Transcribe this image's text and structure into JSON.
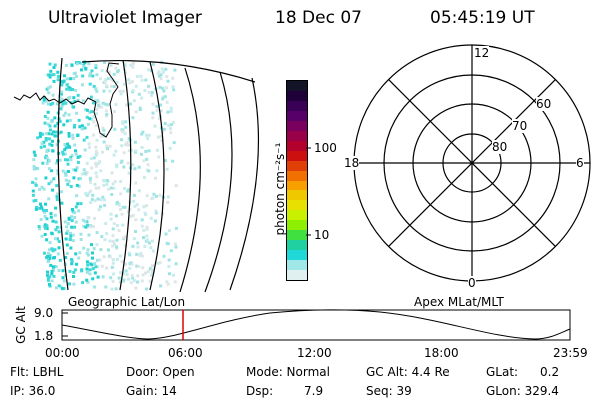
{
  "header": {
    "title": "Ultraviolet Imager",
    "date": "18 Dec 07",
    "time": "05:45:19 UT"
  },
  "colorbar": {
    "label": "photon cm⁻²s⁻¹",
    "ticks": [
      "100",
      "10"
    ],
    "colors": [
      "#141428",
      "#200038",
      "#3a0058",
      "#58006a",
      "#7a0060",
      "#98004a",
      "#b4002c",
      "#cc1010",
      "#e04008",
      "#f07000",
      "#f8a000",
      "#f0c800",
      "#e8e000",
      "#c8f000",
      "#8ef000",
      "#40e040",
      "#20d0a0",
      "#20d8d8",
      "#a0e8e8",
      "#e0f0f0"
    ]
  },
  "geo_panel": {
    "caption": "Geographic Lat/Lon"
  },
  "polar_plot": {
    "caption": "Apex MLat/MLT",
    "mlt_labels": {
      "top": "12",
      "left": "18",
      "right": "6",
      "bottom": "0"
    },
    "lat_labels": [
      "60",
      "70",
      "80"
    ]
  },
  "altitude_plot": {
    "ylabel": "GC Alt",
    "yticks": [
      "9.0",
      "1.8"
    ],
    "xticks": [
      "00:00",
      "06:00",
      "12:00",
      "18:00",
      "23:59"
    ],
    "current_time_color": "#e00000"
  },
  "info": {
    "flt": "Flt: LBHL",
    "ip": "IP: 36.0",
    "door": "Door: Open",
    "gain": "Gain: 14",
    "mode": "Mode: Normal",
    "dsp_label": "Dsp:",
    "dsp_value": "7.9",
    "gc_alt": "GC Alt: 4.4 Re",
    "seq": "Seq: 39",
    "glat_label": "GLat:",
    "glat_value": "0.2",
    "glon": "GLon: 329.4"
  }
}
